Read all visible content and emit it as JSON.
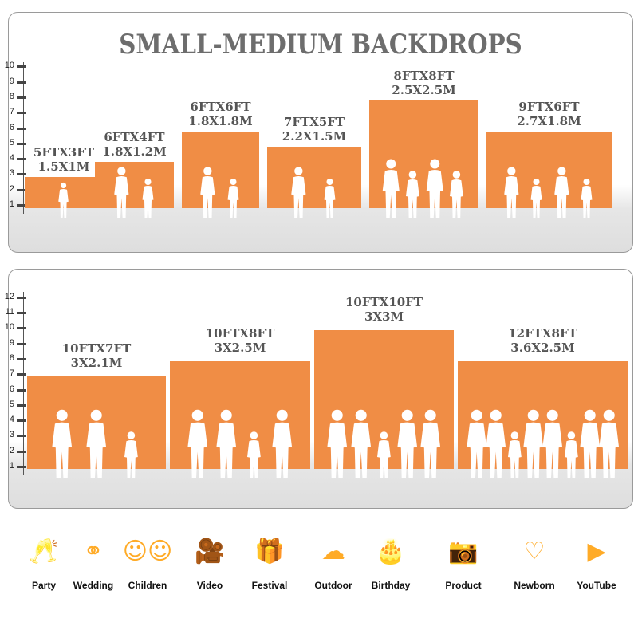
{
  "panel1": {
    "title": "SMALL-MEDIUM BACKDROPS",
    "scale_ticks": [
      "1",
      "2",
      "3",
      "4",
      "5",
      "6",
      "7",
      "8",
      "9",
      "10"
    ],
    "backdrops": [
      {
        "size_ft": "5FTX3FT",
        "size_m": "1.5X1M",
        "width_ft": 5,
        "height_ft": 3
      },
      {
        "size_ft": "6FTX4FT",
        "size_m": "1.8X1.2M",
        "width_ft": 6,
        "height_ft": 4
      },
      {
        "size_ft": "6FTX6FT",
        "size_m": "1.8X1.8M",
        "width_ft": 6,
        "height_ft": 6
      },
      {
        "size_ft": "7FTX5FT",
        "size_m": "2.2X1.5M",
        "width_ft": 7,
        "height_ft": 5
      },
      {
        "size_ft": "8FTX8FT",
        "size_m": "2.5X2.5M",
        "width_ft": 8,
        "height_ft": 8
      },
      {
        "size_ft": "9FTX6FT",
        "size_m": "2.7X1.8M",
        "width_ft": 9,
        "height_ft": 6
      }
    ]
  },
  "panel2": {
    "scale_ticks": [
      "1",
      "2",
      "3",
      "4",
      "5",
      "6",
      "7",
      "8",
      "9",
      "10",
      "11",
      "12"
    ],
    "backdrops": [
      {
        "size_ft": "10FTX7FT",
        "size_m": "3X2.1M",
        "width_ft": 10,
        "height_ft": 7
      },
      {
        "size_ft": "10FTX8FT",
        "size_m": "3X2.5M",
        "width_ft": 10,
        "height_ft": 8
      },
      {
        "size_ft": "10FTX10FT",
        "size_m": "3X3M",
        "width_ft": 10,
        "height_ft": 10
      },
      {
        "size_ft": "12FTX8FT",
        "size_m": "3.6X2.5M",
        "width_ft": 12,
        "height_ft": 8
      }
    ]
  },
  "accent_color": "#f08d45",
  "uses": [
    {
      "label": "Party",
      "icon": "champagne-glasses-icon"
    },
    {
      "label": "Wedding",
      "icon": "wedding-couple-icon"
    },
    {
      "label": "Children",
      "icon": "children-faces-icon"
    },
    {
      "label": "Video",
      "icon": "video-camera-icon"
    },
    {
      "label": "Festival",
      "icon": "gift-box-icon"
    },
    {
      "label": "Outdoor",
      "icon": "cloud-icon"
    },
    {
      "label": "Birthday",
      "icon": "birthday-cake-icon"
    },
    {
      "label": "Product",
      "icon": "camera-icon"
    },
    {
      "label": "Newborn",
      "icon": "baby-onesie-icon"
    },
    {
      "label": "YouTube",
      "icon": "play-icon"
    }
  ]
}
